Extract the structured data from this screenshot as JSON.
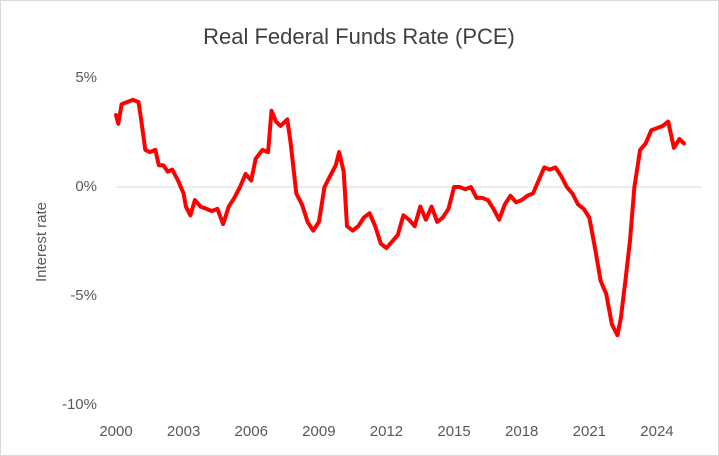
{
  "chart_data": {
    "type": "line",
    "title": "Real Federal Funds Rate (PCE)",
    "y_label": "Interest rate",
    "xlim": [
      2000,
      2026
    ],
    "xticks": [
      2000,
      2003,
      2006,
      2009,
      2012,
      2015,
      2018,
      2021,
      2024
    ],
    "ylim": [
      -10,
      5
    ],
    "yticks": [
      {
        "value": -10,
        "label": "-10%"
      },
      {
        "value": -5,
        "label": "-5%"
      },
      {
        "value": 0,
        "label": "0%"
      },
      {
        "value": 5,
        "label": "5%"
      }
    ],
    "grid": false,
    "zero_line": true,
    "series": [
      {
        "name": "Real Federal Funds Rate",
        "color": "#ff0000",
        "x": [
          2000.0,
          2000.1,
          2000.25,
          2000.5,
          2000.75,
          2001.0,
          2001.1,
          2001.3,
          2001.5,
          2001.75,
          2001.9,
          2002.1,
          2002.3,
          2002.5,
          2002.75,
          2003.0,
          2003.1,
          2003.3,
          2003.5,
          2003.75,
          2004.0,
          2004.25,
          2004.5,
          2004.75,
          2005.0,
          2005.25,
          2005.5,
          2005.75,
          2006.0,
          2006.2,
          2006.5,
          2006.75,
          2006.9,
          2007.1,
          2007.3,
          2007.6,
          2007.75,
          2008.0,
          2008.25,
          2008.5,
          2008.75,
          2009.0,
          2009.25,
          2009.5,
          2009.75,
          2009.9,
          2010.1,
          2010.25,
          2010.5,
          2010.75,
          2011.0,
          2011.25,
          2011.5,
          2011.75,
          2012.0,
          2012.25,
          2012.5,
          2012.75,
          2013.0,
          2013.25,
          2013.5,
          2013.75,
          2014.0,
          2014.25,
          2014.5,
          2014.75,
          2015.0,
          2015.25,
          2015.5,
          2015.75,
          2016.0,
          2016.25,
          2016.5,
          2016.75,
          2017.0,
          2017.25,
          2017.5,
          2017.75,
          2018.0,
          2018.25,
          2018.5,
          2018.75,
          2019.0,
          2019.25,
          2019.5,
          2019.75,
          2020.0,
          2020.25,
          2020.5,
          2020.75,
          2021.0,
          2021.25,
          2021.5,
          2021.75,
          2022.0,
          2022.25,
          2022.4,
          2022.6,
          2022.8,
          2023.0,
          2023.25,
          2023.5,
          2023.75,
          2024.0,
          2024.25,
          2024.5,
          2024.75,
          2025.0,
          2025.2
        ],
        "values": [
          3.3,
          2.9,
          3.8,
          3.9,
          4.0,
          3.9,
          3.2,
          1.7,
          1.6,
          1.7,
          1.0,
          1.0,
          0.7,
          0.8,
          0.3,
          -0.3,
          -0.9,
          -1.3,
          -0.6,
          -0.9,
          -1.0,
          -1.1,
          -1.0,
          -1.7,
          -0.9,
          -0.5,
          0.0,
          0.6,
          0.3,
          1.3,
          1.7,
          1.6,
          3.5,
          3.0,
          2.8,
          3.1,
          2.0,
          -0.3,
          -0.8,
          -1.6,
          -2.0,
          -1.6,
          0.0,
          0.5,
          1.0,
          1.6,
          0.7,
          -1.8,
          -2.0,
          -1.8,
          -1.4,
          -1.2,
          -1.8,
          -2.6,
          -2.8,
          -2.5,
          -2.2,
          -1.3,
          -1.5,
          -1.8,
          -0.9,
          -1.5,
          -0.9,
          -1.6,
          -1.4,
          -1.0,
          0.0,
          0.0,
          -0.1,
          0.0,
          -0.5,
          -0.5,
          -0.6,
          -1.0,
          -1.5,
          -0.8,
          -0.4,
          -0.7,
          -0.6,
          -0.4,
          -0.3,
          0.3,
          0.9,
          0.8,
          0.9,
          0.5,
          0.0,
          -0.3,
          -0.8,
          -1.0,
          -1.4,
          -2.8,
          -4.3,
          -4.9,
          -6.3,
          -6.8,
          -6.0,
          -4.3,
          -2.5,
          0.0,
          1.7,
          2.0,
          2.6,
          2.7,
          2.8,
          3.0,
          1.8,
          2.2,
          2.0
        ]
      }
    ]
  }
}
